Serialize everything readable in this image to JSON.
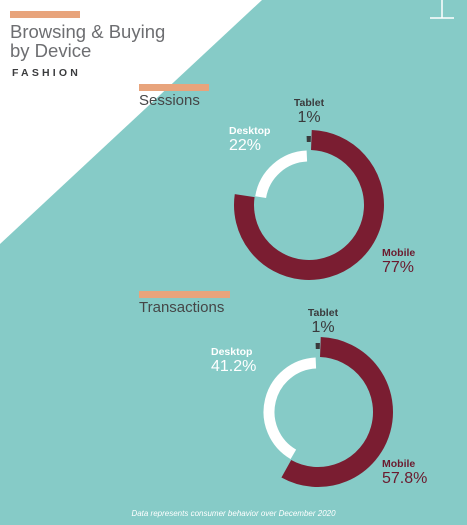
{
  "header": {
    "title_line1": "Browsing & Buying",
    "title_line2": "by Device",
    "subtitle": "FASHION"
  },
  "colors": {
    "background": "#ffffff",
    "teal": "#86cbc7",
    "accent_bar": "#e8a47c",
    "mobile": "#7a1d31",
    "desktop": "#ffffff",
    "tablet": "#3a3a3c"
  },
  "chart_data": [
    {
      "type": "pie",
      "title": "Sessions",
      "series": [
        {
          "name": "Tablet",
          "value": 1,
          "label": "1%"
        },
        {
          "name": "Mobile",
          "value": 77,
          "label": "77%"
        },
        {
          "name": "Desktop",
          "value": 22,
          "label": "22%"
        }
      ]
    },
    {
      "type": "pie",
      "title": "Transactions",
      "series": [
        {
          "name": "Tablet",
          "value": 1,
          "label": "1%"
        },
        {
          "name": "Mobile",
          "value": 57.8,
          "label": "57.8%"
        },
        {
          "name": "Desktop",
          "value": 41.2,
          "label": "41.2%"
        }
      ]
    }
  ],
  "footnote": "Data represents consumer behavior over December 2020"
}
